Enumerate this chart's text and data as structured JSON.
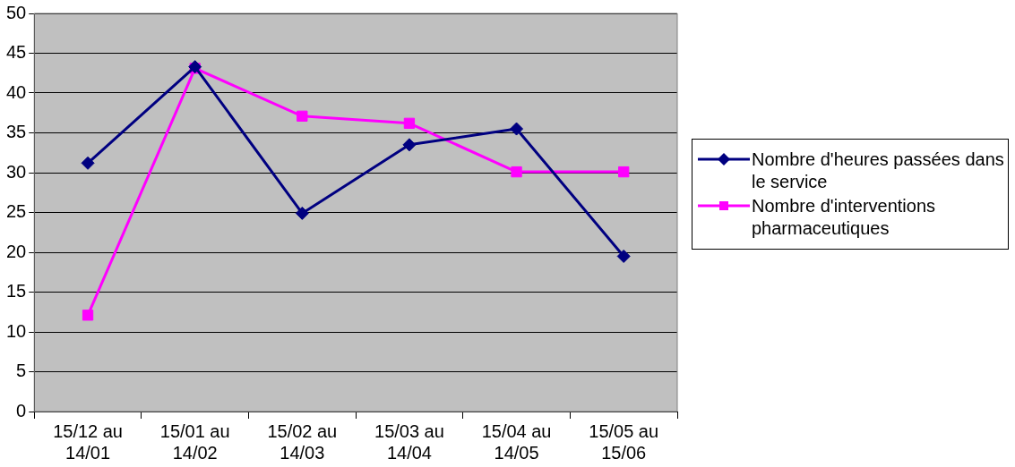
{
  "chart_data": {
    "type": "line",
    "categories": [
      "15/12 au 14/01",
      "15/01 au 14/02",
      "15/02 au 14/03",
      "15/03 au 14/04",
      "15/04 au 14/05",
      "15/05 au 15/06"
    ],
    "series": [
      {
        "name": "Nombre d'heures passées dans le service",
        "color": "#000080",
        "marker": "diamond",
        "values": [
          31.2,
          43.3,
          24.9,
          33.5,
          35.5,
          19.5
        ]
      },
      {
        "name": "Nombre d'interventions pharmaceutiques",
        "color": "#ff00ff",
        "marker": "square",
        "values": [
          12.1,
          43.1,
          37.1,
          36.2,
          30.1,
          30.1
        ]
      }
    ],
    "ylim": [
      0,
      50
    ],
    "yticks": [
      0,
      5,
      10,
      15,
      20,
      25,
      30,
      35,
      40,
      45,
      50
    ],
    "grid": "y",
    "legend": "right",
    "line_style": "solid"
  }
}
